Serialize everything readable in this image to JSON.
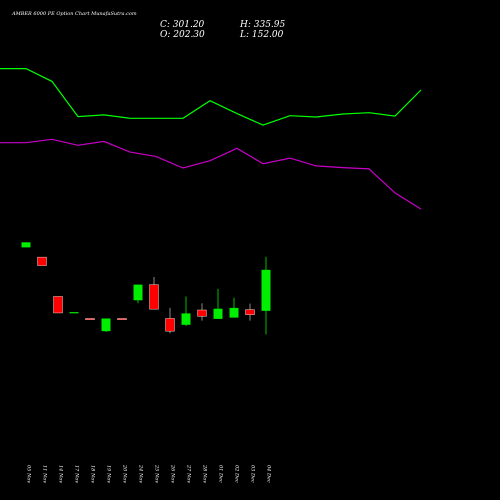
{
  "title": "AMBER 6000 PE Option Chart MunafaSutra.com",
  "ohlc": {
    "close_label": "C: 301.20",
    "open_label": "O: 202.30",
    "high_label": "H: 335.95",
    "low_label": "L: 152.00"
  },
  "colors": {
    "background": "#000000",
    "up": "#00ee00",
    "down": "#ff0000",
    "line_upper": "#00ff00",
    "line_lower": "#c800c8",
    "text": "#ffffff"
  },
  "chart_data": {
    "type": "candlestick",
    "categories": [
      "05 Nov",
      "11 Nov",
      "14 Nov",
      "17 Nov",
      "18 Nov",
      "19 Nov",
      "20 Nov",
      "24 Nov",
      "25 Nov",
      "26 Nov",
      "27 Nov",
      "28 Nov",
      "01 Dec",
      "02 Dec",
      "03 Dec",
      "04 Dec"
    ],
    "ylim": [
      120,
      640
    ],
    "candles": [
      {
        "open": 528,
        "high": 540,
        "low": 528,
        "close": 540
      },
      {
        "open": 505,
        "high": 505,
        "low": 485,
        "close": 485
      },
      {
        "open": 412,
        "high": 412,
        "low": 373,
        "close": 373
      },
      {
        "open": 375,
        "high": 375,
        "low": 375,
        "close": 375
      },
      {
        "open": 360,
        "high": 360,
        "low": 359,
        "close": 359
      },
      {
        "open": 330,
        "high": 360,
        "low": 328,
        "close": 360
      },
      {
        "open": 360,
        "high": 360,
        "low": 359,
        "close": 359
      },
      {
        "open": 403,
        "high": 440,
        "low": 396,
        "close": 440
      },
      {
        "open": 440,
        "high": 458,
        "low": 382,
        "close": 382
      },
      {
        "open": 360,
        "high": 385,
        "low": 325,
        "close": 330
      },
      {
        "open": 345,
        "high": 412,
        "low": 342,
        "close": 372
      },
      {
        "open": 380,
        "high": 396,
        "low": 355,
        "close": 365
      },
      {
        "open": 359,
        "high": 430,
        "low": 359,
        "close": 383
      },
      {
        "open": 362,
        "high": 409,
        "low": 362,
        "close": 385
      },
      {
        "open": 381,
        "high": 395,
        "low": 355,
        "close": 369
      },
      {
        "open": 378,
        "high": 506,
        "low": 322,
        "close": 475
      }
    ],
    "line_upper": [
      1040,
      1040,
      1010,
      928,
      932,
      924,
      924,
      924,
      965,
      935,
      908,
      930,
      927,
      934,
      937,
      929,
      990
    ],
    "line_lower": [
      867,
      867,
      875,
      861,
      870,
      845,
      835,
      808,
      825,
      854,
      818,
      831,
      813,
      809,
      806,
      750,
      712
    ],
    "line_x": [
      "05 Nov",
      "11 Nov",
      "14 Nov",
      "17 Nov",
      "18 Nov",
      "19 Nov",
      "20 Nov",
      "24 Nov",
      "25 Nov",
      "26 Nov",
      "27 Nov",
      "28 Nov",
      "01 Dec",
      "02 Dec",
      "03 Dec",
      "04 Dec",
      "04 Dec"
    ]
  }
}
